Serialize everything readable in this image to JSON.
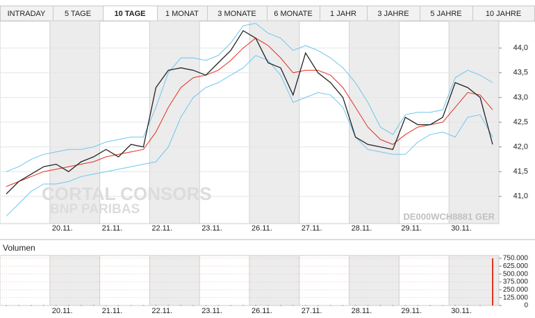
{
  "tabs": [
    "INTRADAY",
    "5 TAGE",
    "10 TAGE",
    "1 MONAT",
    "3 MONATE",
    "6 MONATE",
    "1 JAHR",
    "3 JAHRE",
    "5 JAHRE",
    "10 JAHRE"
  ],
  "active_tab": 2,
  "chart_data": [
    {
      "type": "line",
      "annotations": [
        "CORTAL CONSORS",
        "BNP PARIBAS",
        "DE000WCH8881 GER"
      ],
      "categories": [
        null,
        null,
        null,
        null,
        "20.11.",
        null,
        null,
        null,
        "21.11.",
        null,
        null,
        null,
        "22.11.",
        null,
        null,
        null,
        "23.11.",
        null,
        null,
        null,
        "26.11.",
        null,
        null,
        null,
        "27.11.",
        null,
        null,
        null,
        "28.11.",
        null,
        null,
        null,
        "29.11.",
        null,
        null,
        null,
        "30.11.",
        null,
        null,
        null
      ],
      "series": [
        {
          "color": "#6ec6ef",
          "values": [
            41.5,
            41.6,
            41.75,
            41.85,
            41.9,
            41.95,
            41.95,
            42.0,
            42.1,
            42.15,
            42.2,
            42.2,
            42.8,
            43.5,
            43.8,
            43.8,
            43.75,
            43.85,
            44.1,
            44.45,
            44.5,
            44.3,
            44.2,
            43.95,
            44.05,
            43.95,
            43.8,
            43.6,
            43.3,
            42.9,
            42.4,
            42.25,
            42.65,
            42.7,
            42.7,
            42.75,
            43.4,
            43.55,
            43.45,
            43.3
          ]
        },
        {
          "color": "#6ec6ef",
          "values": [
            40.6,
            40.85,
            41.1,
            41.25,
            41.25,
            41.3,
            41.4,
            41.45,
            41.5,
            41.55,
            41.6,
            41.65,
            41.7,
            42.0,
            42.6,
            43.0,
            43.2,
            43.3,
            43.45,
            43.6,
            43.85,
            43.75,
            43.45,
            42.9,
            43.0,
            43.1,
            43.05,
            42.8,
            42.2,
            41.95,
            41.9,
            41.85,
            41.85,
            42.1,
            42.25,
            42.3,
            42.2,
            42.6,
            42.65,
            42.2
          ]
        },
        {
          "color": "#e0301e",
          "values": [
            41.2,
            41.3,
            41.4,
            41.5,
            41.55,
            41.6,
            41.65,
            41.7,
            41.8,
            41.85,
            41.9,
            41.95,
            42.3,
            42.8,
            43.2,
            43.4,
            43.45,
            43.55,
            43.75,
            44.0,
            44.2,
            44.05,
            43.8,
            43.5,
            43.55,
            43.55,
            43.45,
            43.2,
            42.8,
            42.4,
            42.15,
            42.05,
            42.25,
            42.4,
            42.45,
            42.5,
            42.8,
            43.1,
            43.05,
            42.75
          ]
        },
        {
          "color": "#222222",
          "values": [
            41.05,
            41.3,
            41.45,
            41.6,
            41.65,
            41.5,
            41.7,
            41.8,
            41.95,
            41.8,
            42.05,
            42.0,
            43.2,
            43.55,
            43.6,
            43.55,
            43.45,
            43.7,
            43.95,
            44.35,
            44.2,
            43.7,
            43.6,
            43.05,
            43.9,
            43.5,
            43.3,
            43.0,
            42.2,
            42.05,
            42.0,
            41.95,
            42.6,
            42.45,
            42.45,
            42.6,
            43.3,
            43.2,
            43.0,
            42.05
          ]
        }
      ],
      "ylim": [
        40.45,
        44.55
      ],
      "yticks": [
        {
          "value": 41.0,
          "label": "41,0"
        },
        {
          "value": 41.5,
          "label": "41,5"
        },
        {
          "value": 42.0,
          "label": "42,0"
        },
        {
          "value": 42.5,
          "label": "42,5"
        },
        {
          "value": 43.0,
          "label": "43,0"
        },
        {
          "value": 43.5,
          "label": "43,5"
        },
        {
          "value": 44.0,
          "label": "44,0"
        }
      ],
      "grid": true
    },
    {
      "type": "bar",
      "title": "Volumen",
      "categories": [
        null,
        null,
        null,
        null,
        "20.11.",
        null,
        null,
        null,
        "21.11.",
        null,
        null,
        null,
        "22.11.",
        null,
        null,
        null,
        "23.11.",
        null,
        null,
        null,
        "26.11.",
        null,
        null,
        null,
        "27.11.",
        null,
        null,
        null,
        "28.11.",
        null,
        null,
        null,
        "29.11.",
        null,
        null,
        null,
        "30.11.",
        null,
        null,
        null
      ],
      "values": [
        3000,
        4000,
        3000,
        5000,
        3000,
        4000,
        3000,
        4000,
        3000,
        3000,
        4000,
        3000,
        6000,
        5000,
        4000,
        3000,
        3000,
        4000,
        3000,
        5000,
        4000,
        3000,
        3000,
        4000,
        5000,
        3000,
        4000,
        3000,
        4000,
        3000,
        3000,
        3000,
        3000,
        4000,
        3000,
        3000,
        5000,
        4000,
        3000,
        750000
      ],
      "color": "#e0301e",
      "ylim": [
        0,
        794000
      ],
      "yticks": [
        0,
        {
          "value": 125000,
          "label": "125.000"
        },
        {
          "value": 250000,
          "label": "250.000"
        },
        {
          "value": 375000,
          "label": "375.000"
        },
        {
          "value": 500000,
          "label": "500.000"
        },
        {
          "value": 625000,
          "label": "625.000"
        },
        {
          "value": 750000,
          "label": "750.000"
        }
      ],
      "grid": true
    }
  ]
}
